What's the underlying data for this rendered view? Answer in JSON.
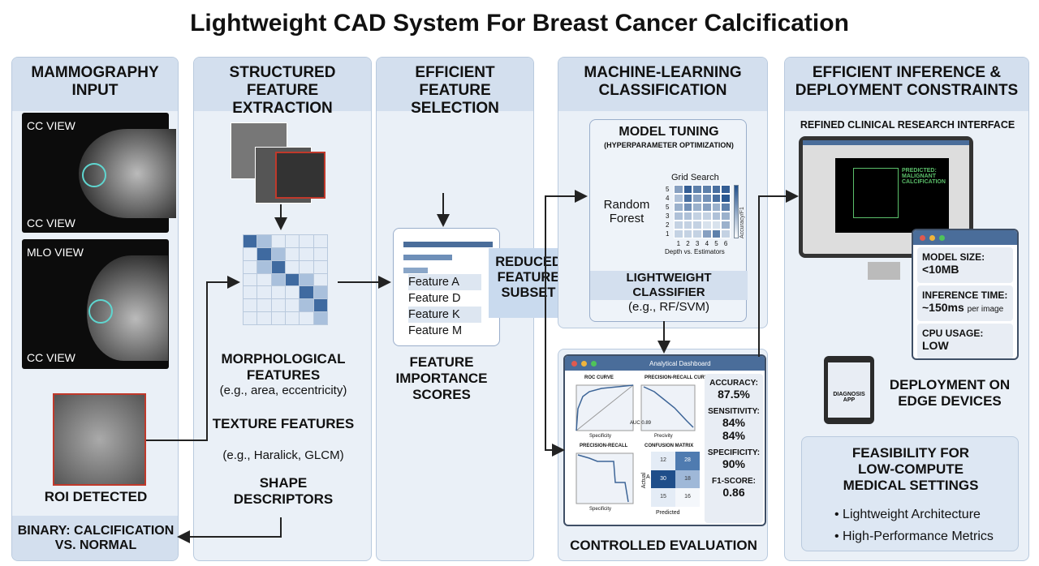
{
  "title": "Lightweight CAD System For Breast Cancer Calcification",
  "col1": {
    "header": "MAMMOGRAPHY INPUT",
    "cc_view_top": "CC VIEW",
    "cc_view_bottom": "CC VIEW",
    "mlo_view": "MLO VIEW",
    "cc_view_2": "CC VIEW",
    "roi": "ROI DETECTED",
    "footer": "BINARY: CALCIFICATION VS. NORMAL"
  },
  "col2": {
    "header": "STRUCTURED FEATURE EXTRACTION",
    "morph": "MORPHOLOGICAL FEATURES",
    "morph_sub": "(e.g., area, eccentricity)",
    "texture": "TEXTURE FEATURES",
    "texture_sub": "(e.g., Haralick, GLCM)",
    "shape": "SHAPE DESCRIPTORS"
  },
  "col3": {
    "header": "EFFICIENT FEATURE SELECTION",
    "features": [
      "Feature A",
      "Feature D",
      "Feature K",
      "Feature M"
    ],
    "importance": "FEATURE IMPORTANCE SCORES",
    "subset": "REDUCED FEATURE SUBSET"
  },
  "col4": {
    "header": "MACHINE-LEARNING CLASSIFICATION",
    "tuning": "MODEL TUNING",
    "tuning_sub": "(HYPERPARAMETER OPTIMIZATION)",
    "rf": "Random Forest",
    "grid": "Grid Search",
    "grid_y": [
      "5",
      "4",
      "5",
      "3",
      "2",
      "1"
    ],
    "grid_x": [
      "1",
      "2",
      "3",
      "4",
      "5",
      "6"
    ],
    "grid_xlabel": "Depth vs. Estimators",
    "grid_cbar": "Accuracy/F1",
    "classifier": "LIGHTWEIGHT CLASSIFIER",
    "classifier_sub": "(e.g., RF/SVM)",
    "dashboard": {
      "title": "Analytical Dashboard",
      "roc": "ROC CURVE",
      "auc": "AUC 0.89",
      "pr": "PRECISION-RECALL CURVE",
      "pr2": "PRECISION-RECALL",
      "cm": "CONFUSION MATRIX",
      "cm_actual": "Actual",
      "cm_pred": "Predicted",
      "cm_row": "A",
      "cm_values": [
        "12",
        "28",
        "30",
        "18",
        "15",
        "16"
      ],
      "ax_spec": "Specificity",
      "ax_prec": "Precision",
      "ax_prec2": "Precivity",
      "metrics": [
        {
          "label": "ACCURACY:",
          "value": "87.5%"
        },
        {
          "label": "SENSITIVITY:",
          "value": "84%",
          "value2": "84%"
        },
        {
          "label": "SPECIFICITY:",
          "value": "90%"
        },
        {
          "label": "F1-SCORE:",
          "value": "0.86"
        }
      ]
    },
    "evaluation": "CONTROLLED EVALUATION"
  },
  "col5": {
    "header": "EFFICIENT INFERENCE & DEPLOYMENT CONSTRAINTS",
    "interface": "REFINED CLINICAL RESEARCH INTERFACE",
    "predicted": "PREDICTED: MALIGNANT CALCIFICATION",
    "stats": [
      {
        "label": "MODEL SIZE:",
        "value": "<10MB",
        "unit": ""
      },
      {
        "label": "INFERENCE TIME:",
        "value": "~150ms",
        "unit": "per image"
      },
      {
        "label": "CPU USAGE:",
        "value": "LOW",
        "unit": ""
      }
    ],
    "app": "DIAGNOSIS APP",
    "edge": "DEPLOYMENT ON EDGE DEVICES",
    "feas": "FEASIBILITY FOR LOW-COMPUTE MEDICAL SETTINGS",
    "bullets": [
      "Lightweight Architecture",
      "High-Performance Metrics"
    ]
  },
  "colors": {
    "accent": "#4a6d9a",
    "panel": "#eaf0f7",
    "header": "#d3dfee",
    "cyan": "#5fd6d0",
    "green": "#5bbf6a"
  }
}
